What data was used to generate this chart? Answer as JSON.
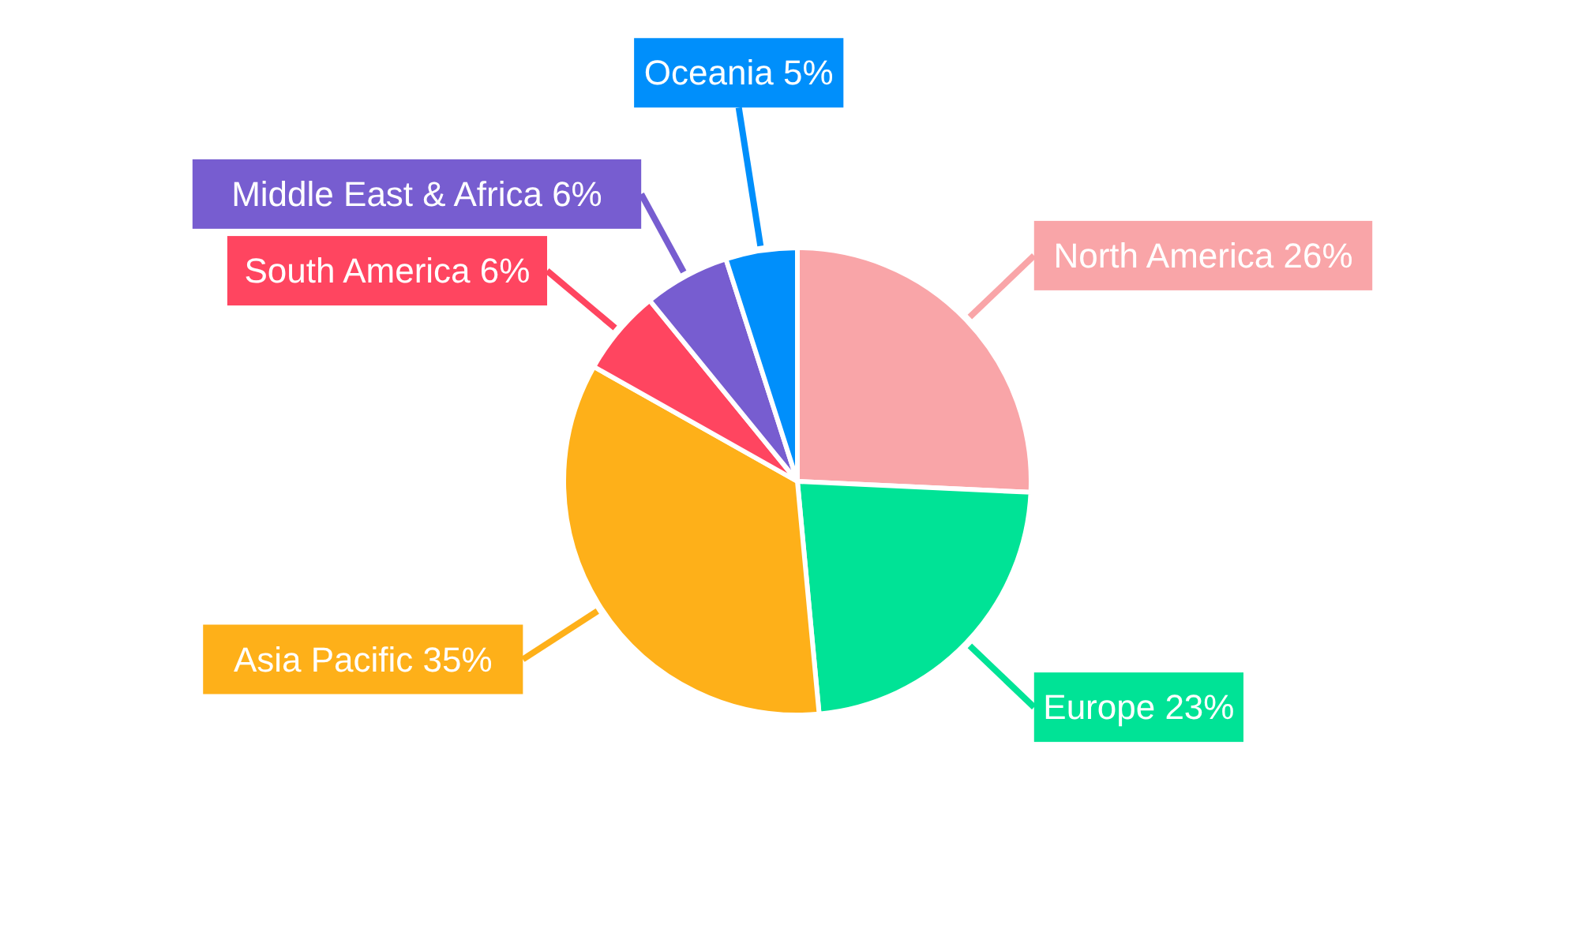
{
  "chart_data": {
    "type": "pie",
    "categories": [
      "North America",
      "Europe",
      "Asia Pacific",
      "South America",
      "Middle East & Africa",
      "Oceania"
    ],
    "values": [
      26,
      23,
      35,
      6,
      6,
      5
    ],
    "value_labels": [
      "26%",
      "23%",
      "35%",
      "6%",
      "6%",
      "5%"
    ],
    "colors": [
      "#f9a5a8",
      "#00e396",
      "#feb019",
      "#ff4560",
      "#775dd0",
      "#008ffb"
    ]
  }
}
